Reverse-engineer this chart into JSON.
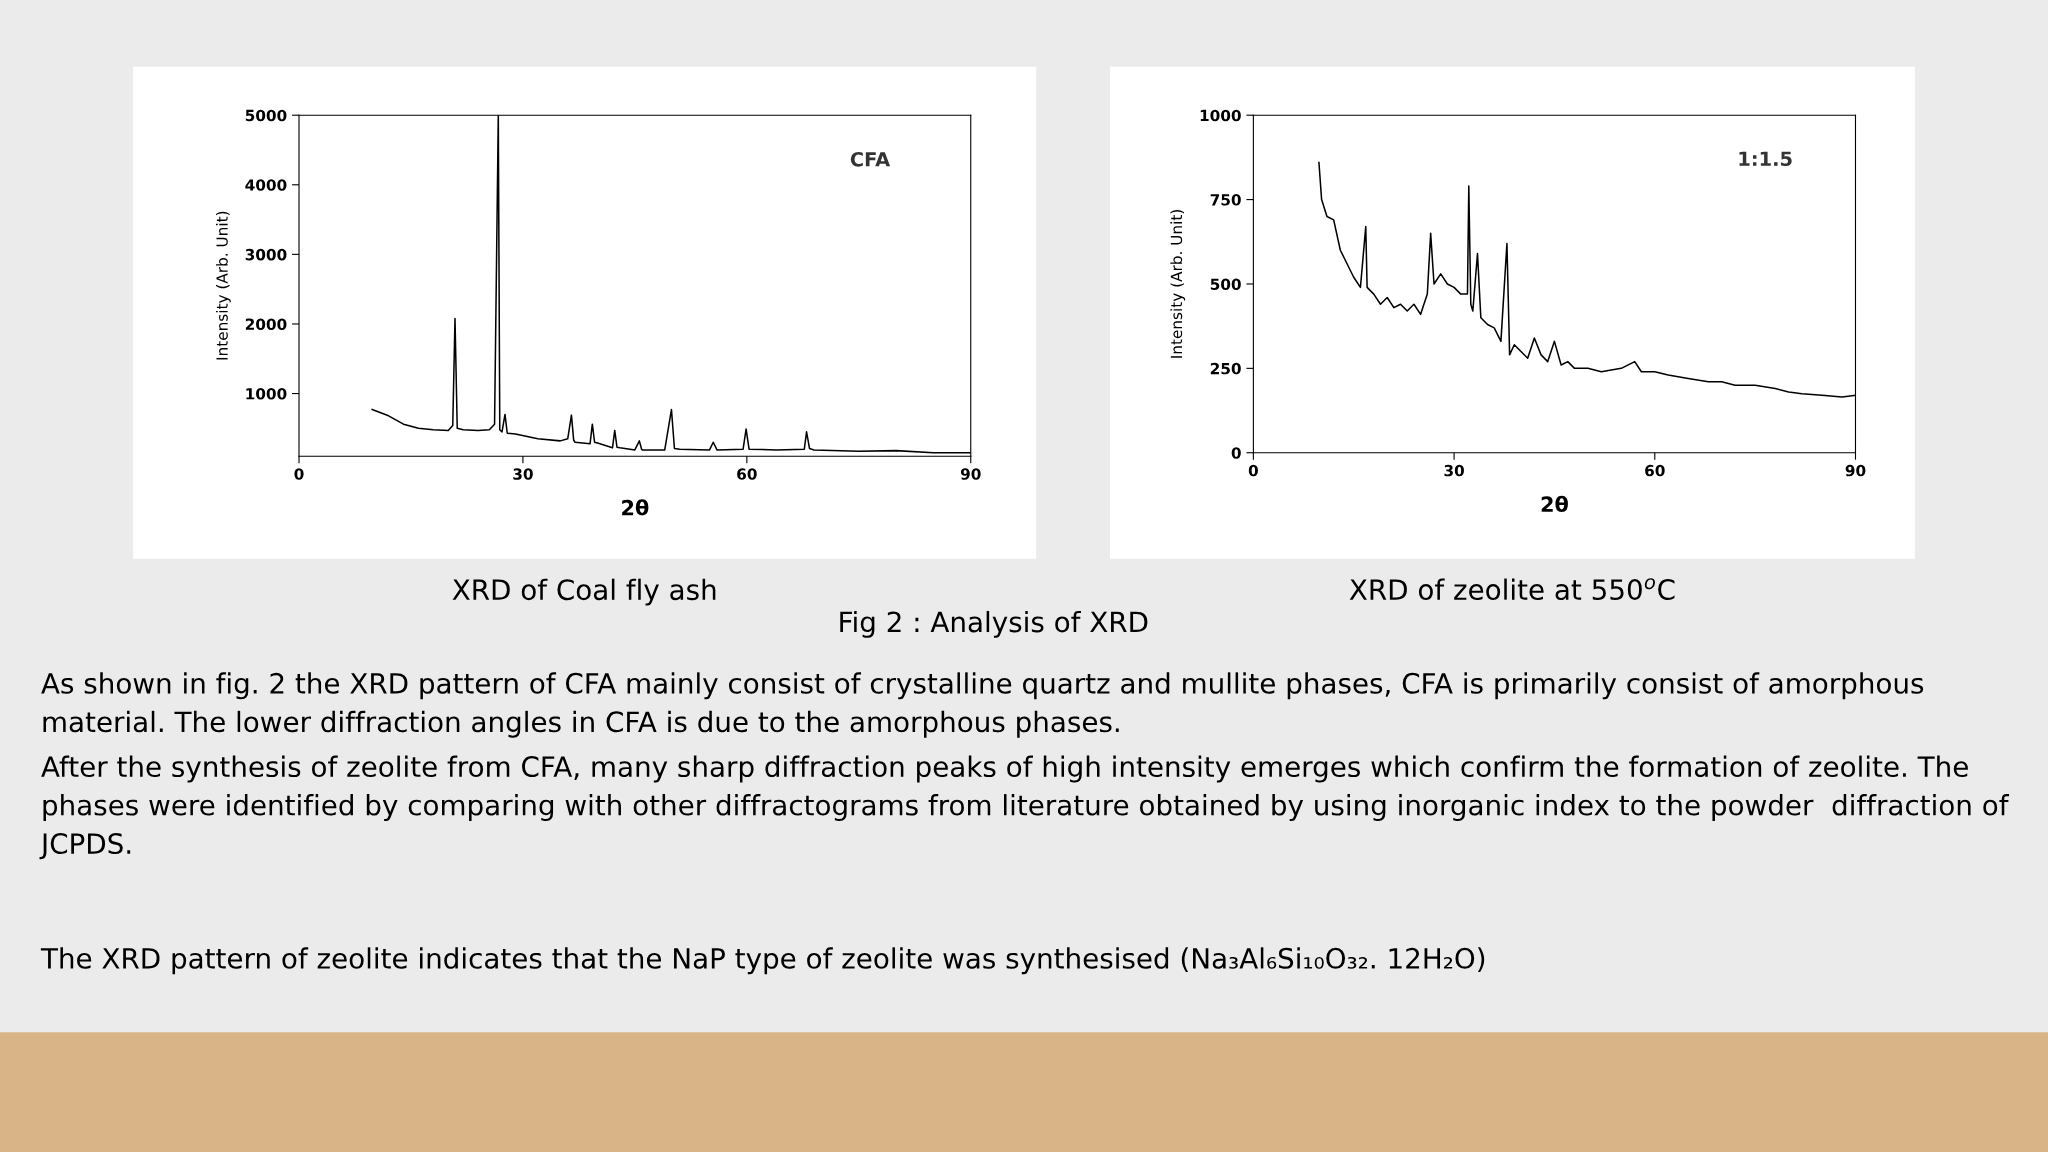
{
  "chart_data": [
    {
      "type": "line",
      "xlabel": "2θ",
      "ylabel": "Intensity (Arb. Unit)",
      "annotations": [
        "CFA",
        "XRD of Coal fly ash"
      ],
      "xlim": [
        0,
        90
      ],
      "ylim": [
        100,
        5000
      ],
      "xticks": [
        0,
        30,
        60,
        90
      ],
      "yticks": [
        1000,
        2000,
        3000,
        4000,
        5000
      ],
      "grid": false,
      "marker": "none",
      "line_style": "solid",
      "series": [
        {
          "color": "#000000",
          "x": [
            9.8,
            12,
            14,
            16,
            18,
            20,
            20.6,
            20.9,
            21.2,
            22,
            24,
            25.5,
            26.2,
            26.7,
            26.9,
            27.2,
            27.6,
            27.9,
            29,
            32,
            35,
            36,
            36.5,
            36.8,
            37,
            39,
            39.3,
            39.6,
            40,
            42,
            42.3,
            42.6,
            43,
            45,
            45.6,
            45.9,
            46,
            49,
            49.9,
            50.3,
            51,
            55,
            55.5,
            56,
            59.5,
            59.9,
            60.3,
            64,
            67.7,
            68.0,
            68.4,
            69,
            75,
            80,
            85,
            90
          ],
          "values": [
            770,
            680,
            560,
            500,
            480,
            470,
            540,
            2080,
            500,
            480,
            470,
            480,
            560,
            5000,
            480,
            450,
            700,
            430,
            420,
            350,
            320,
            350,
            690,
            330,
            300,
            280,
            560,
            300,
            290,
            220,
            470,
            230,
            220,
            190,
            320,
            200,
            190,
            190,
            770,
            210,
            200,
            190,
            300,
            190,
            200,
            490,
            200,
            190,
            200,
            450,
            210,
            190,
            170,
            180,
            150,
            150
          ]
        }
      ]
    },
    {
      "type": "line",
      "xlabel": "2θ",
      "ylabel": "Intensity (Arb. Unit)",
      "annotations": [
        "1:1.5",
        "XRD of zeolite at 550$^{o}$C"
      ],
      "xlim": [
        0,
        90
      ],
      "ylim": [
        0,
        1000
      ],
      "xticks": [
        0,
        30,
        60,
        90
      ],
      "yticks": [
        0,
        250,
        500,
        750,
        1000
      ],
      "grid": false,
      "marker": "none",
      "line_style": "solid",
      "series": [
        {
          "color": "#000000",
          "x": [
            9.8,
            10.2,
            11,
            12,
            13,
            14,
            15,
            16,
            16.8,
            17,
            18,
            19,
            20,
            21,
            22,
            23,
            24,
            25,
            26,
            26.5,
            27,
            28,
            29,
            30,
            31,
            32,
            32.2,
            32.5,
            32.8,
            33.5,
            34,
            35,
            36,
            37,
            37.9,
            38.3,
            39,
            40,
            41,
            42,
            43,
            44,
            45,
            46,
            47,
            48,
            50,
            52,
            55,
            57,
            58,
            60,
            62,
            65,
            68,
            70,
            72,
            75,
            78,
            80,
            82,
            85,
            88,
            90
          ],
          "values": [
            860,
            750,
            700,
            690,
            600,
            560,
            520,
            490,
            670,
            490,
            470,
            440,
            460,
            430,
            440,
            420,
            440,
            410,
            470,
            650,
            500,
            530,
            500,
            490,
            470,
            470,
            790,
            440,
            420,
            590,
            400,
            380,
            370,
            330,
            620,
            290,
            320,
            300,
            280,
            340,
            290,
            270,
            330,
            260,
            270,
            250,
            250,
            240,
            250,
            270,
            240,
            240,
            230,
            220,
            210,
            210,
            200,
            200,
            190,
            180,
            175,
            170,
            165,
            170
          ]
        }
      ]
    },
    {
      "type": "other",
      "annotations": [
        "Fig 2 : Analysis of XRD",
        "As shown in fig. 2 the XRD pattern of CFA mainly consist of crystalline quartz and mullite phases, CFA is primarily consist of amorphous material. The lower diffraction angles in CFA is due to the amorphous phases.",
        "After the synthesis of zeolite from CFA, many sharp diffraction peaks of high intensity emerges which confirm the formation of zeolite. The phases were identified by comparing with other diffractograms from literature obtained by using inorganic index to the powder  diffraction of JCPDS.",
        "The XRD pattern of zeolite indicates that the NaP type of zeolite was synthesised (Na₃Al₆Si₁₀O₃₂. 12H₂O)"
      ]
    }
  ]
}
